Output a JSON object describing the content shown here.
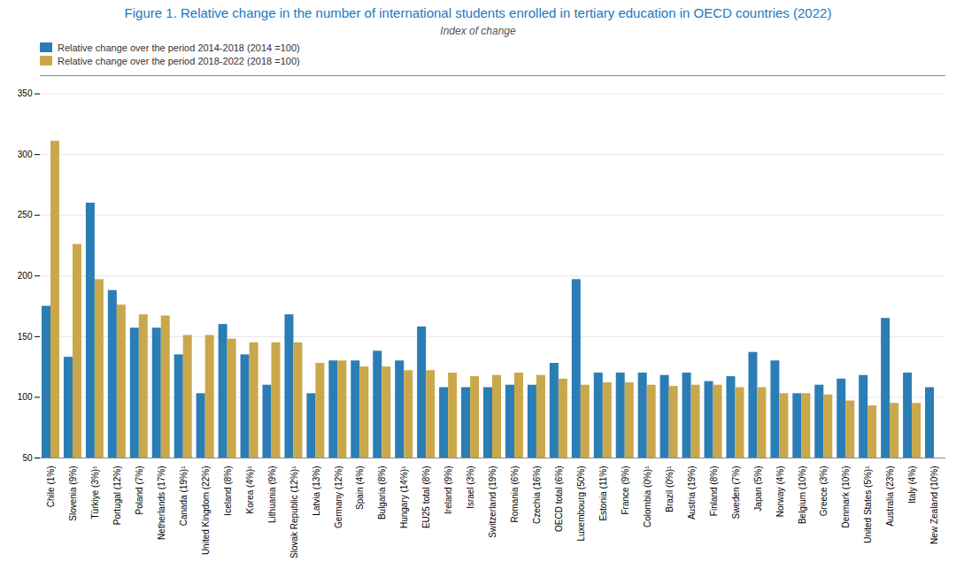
{
  "chart_data": {
    "type": "bar",
    "title": "Figure 1. Relative change in the number of international students enrolled in tertiary education in OECD countries (2022)",
    "subtitle": "Index of change",
    "categories": [
      "Chile (1%)",
      "Slovenia (9%)",
      "Türkiye (3%)¹",
      "Portugal (12%)",
      "Poland (7%)",
      "Netherlands (17%)",
      "Canada (19%)¹",
      "United Kingdom (22%)",
      "Iceland (8%)",
      "Korea (4%)¹",
      "Lithuania (9%)",
      "Slovak Republic (12%)¹",
      "Latvia (13%)",
      "Germany (12%)",
      "Spain (4%)",
      "Bulgaria (8%)",
      "Hungary (14%)¹",
      "EU25 total (8%)",
      "Ireland (9%)",
      "Israel (3%)",
      "Switzerland (19%)",
      "Romania (6%)",
      "Czechia (16%)",
      "OECD total (6%)",
      "Luxembourg (50%)",
      "Estonia (11%)",
      "France (9%)",
      "Colombia (0%)¹",
      "Brazil (0%)¹",
      "Austria (19%)",
      "Finland (8%)",
      "Sweden (7%)",
      "Japan (5%)",
      "Norway (4%)",
      "Belgium (10%)",
      "Greece (3%)",
      "Denmark (10%)",
      "United States (5%)¹",
      "Australia (23%)",
      "Italy (4%)",
      "New Zealand (10%)"
    ],
    "series": [
      {
        "name": "Relative change over the period 2014-2018 (2014 =100)",
        "color": "#2a7db5",
        "values": [
          175,
          133,
          260,
          188,
          157,
          157,
          135,
          103,
          160,
          135,
          110,
          168,
          103,
          130,
          130,
          138,
          130,
          158,
          108,
          108,
          108,
          110,
          110,
          128,
          197,
          120,
          120,
          120,
          118,
          120,
          113,
          117,
          137,
          130,
          103,
          110,
          115,
          118,
          165,
          120,
          108
        ]
      },
      {
        "name": "Relative change over the period 2018-2022 (2018 =100)",
        "color": "#c9a84c",
        "values": [
          311,
          226,
          197,
          176,
          168,
          167,
          151,
          151,
          148,
          145,
          145,
          145,
          128,
          130,
          125,
          125,
          122,
          122,
          120,
          117,
          118,
          120,
          118,
          115,
          110,
          112,
          112,
          110,
          109,
          110,
          110,
          108,
          108,
          103,
          103,
          102,
          97,
          93,
          95,
          95,
          50
        ]
      }
    ],
    "ylim": [
      50,
      365
    ],
    "yticks": [
      50,
      100,
      150,
      200,
      250,
      300,
      350
    ],
    "grid": true,
    "legend": "upper left"
  }
}
